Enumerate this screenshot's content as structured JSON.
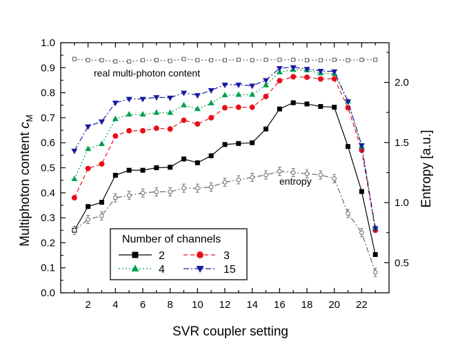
{
  "chart_data": {
    "type": "line",
    "xlabel": "SVR coupler setting",
    "ylabel_left": "Multiphoton content",
    "ylabel_left_symbol": "c",
    "ylabel_left_subscript": "M",
    "ylabel_right": "Entropy [a.u.]",
    "xlim": [
      0,
      24
    ],
    "ylim_left": [
      0.0,
      1.0
    ],
    "ylim_right": [
      0.25,
      2.33
    ],
    "xticks": [
      2,
      4,
      6,
      8,
      10,
      12,
      14,
      16,
      18,
      20,
      22
    ],
    "yticks_left": [
      "0.0",
      "0.1",
      "0.2",
      "0.3",
      "0.4",
      "0.5",
      "0.6",
      "0.7",
      "0.8",
      "0.9",
      "1.0"
    ],
    "yticks_right": [
      "0.5",
      "1.0",
      "1.5",
      "2.0"
    ],
    "legend": {
      "title": "Number of channels",
      "placement": "bottom-left"
    },
    "annotations": {
      "top_series": "real multi-photon content",
      "entropy_series": "entropy"
    },
    "series": [
      {
        "name": "2",
        "axis": "left",
        "color": "#000000",
        "marker": "square",
        "dash": "solid",
        "x": [
          1,
          2,
          3,
          4,
          5,
          6,
          7,
          8,
          9,
          10,
          11,
          12,
          13,
          14,
          15,
          16,
          17,
          18,
          19,
          20,
          21,
          22,
          23
        ],
        "values": [
          0.25,
          0.345,
          0.362,
          0.47,
          0.49,
          0.49,
          0.5,
          0.502,
          0.535,
          0.52,
          0.548,
          0.593,
          0.597,
          0.6,
          0.655,
          0.735,
          0.76,
          0.755,
          0.745,
          0.742,
          0.585,
          0.405,
          0.153
        ]
      },
      {
        "name": "3",
        "axis": "left",
        "color": "#e8101a",
        "marker": "circle",
        "dash": "dashed",
        "x": [
          1,
          2,
          3,
          4,
          5,
          6,
          7,
          8,
          9,
          10,
          11,
          12,
          13,
          14,
          15,
          16,
          17,
          18,
          19,
          20,
          21,
          22,
          23
        ],
        "values": [
          0.38,
          0.497,
          0.515,
          0.627,
          0.648,
          0.648,
          0.658,
          0.655,
          0.69,
          0.675,
          0.7,
          0.74,
          0.742,
          0.742,
          0.785,
          0.848,
          0.864,
          0.862,
          0.855,
          0.856,
          0.74,
          0.57,
          0.25
        ]
      },
      {
        "name": "4",
        "axis": "left",
        "color": "#00a050",
        "marker": "triangle-up",
        "dash": "dotted",
        "x": [
          1,
          2,
          3,
          4,
          5,
          6,
          7,
          8,
          9,
          10,
          11,
          12,
          13,
          14,
          15,
          16,
          17,
          18,
          19,
          20,
          21,
          22,
          23
        ],
        "values": [
          0.455,
          0.575,
          0.595,
          0.695,
          0.713,
          0.713,
          0.72,
          0.72,
          0.75,
          0.735,
          0.758,
          0.79,
          0.792,
          0.792,
          0.83,
          0.882,
          0.892,
          0.89,
          0.878,
          0.876,
          0.765,
          0.585,
          0.26
        ]
      },
      {
        "name": "15",
        "axis": "left",
        "color": "#1a1aa0",
        "marker": "triangle-down",
        "dash": "dashdot",
        "x": [
          1,
          2,
          3,
          4,
          5,
          6,
          7,
          8,
          9,
          10,
          11,
          12,
          13,
          14,
          15,
          16,
          17,
          18,
          19,
          20,
          21,
          22,
          23
        ],
        "values": [
          0.568,
          0.665,
          0.685,
          0.76,
          0.775,
          0.775,
          0.782,
          0.78,
          0.8,
          0.79,
          0.81,
          0.832,
          0.832,
          0.828,
          0.85,
          0.898,
          0.902,
          0.895,
          0.887,
          0.885,
          0.765,
          0.59,
          0.258
        ]
      },
      {
        "name": "real multi-photon content",
        "axis": "left",
        "color": "#555555",
        "marker": "open-square",
        "dash": "dotted",
        "x": [
          1,
          2,
          3,
          4,
          5,
          6,
          7,
          8,
          9,
          10,
          11,
          12,
          13,
          14,
          15,
          16,
          17,
          18,
          19,
          20,
          21,
          22,
          23
        ],
        "values": [
          0.935,
          0.93,
          0.93,
          0.925,
          0.925,
          0.93,
          0.93,
          0.927,
          0.935,
          0.93,
          0.93,
          0.93,
          0.932,
          0.93,
          0.932,
          0.932,
          0.932,
          0.93,
          0.93,
          0.932,
          0.93,
          0.932,
          0.932
        ]
      },
      {
        "name": "entropy",
        "axis": "right",
        "color": "#666666",
        "marker": "open-circle",
        "dash": "dashdot",
        "x": [
          1,
          2,
          3,
          4,
          5,
          6,
          7,
          8,
          9,
          10,
          11,
          12,
          13,
          14,
          15,
          16,
          17,
          18,
          19,
          20,
          21,
          22,
          23
        ],
        "values": [
          0.77,
          0.86,
          0.89,
          1.04,
          1.06,
          1.08,
          1.09,
          1.09,
          1.12,
          1.12,
          1.13,
          1.17,
          1.19,
          1.21,
          1.23,
          1.26,
          1.25,
          1.24,
          1.23,
          1.2,
          0.91,
          0.75,
          0.42
        ]
      }
    ]
  }
}
